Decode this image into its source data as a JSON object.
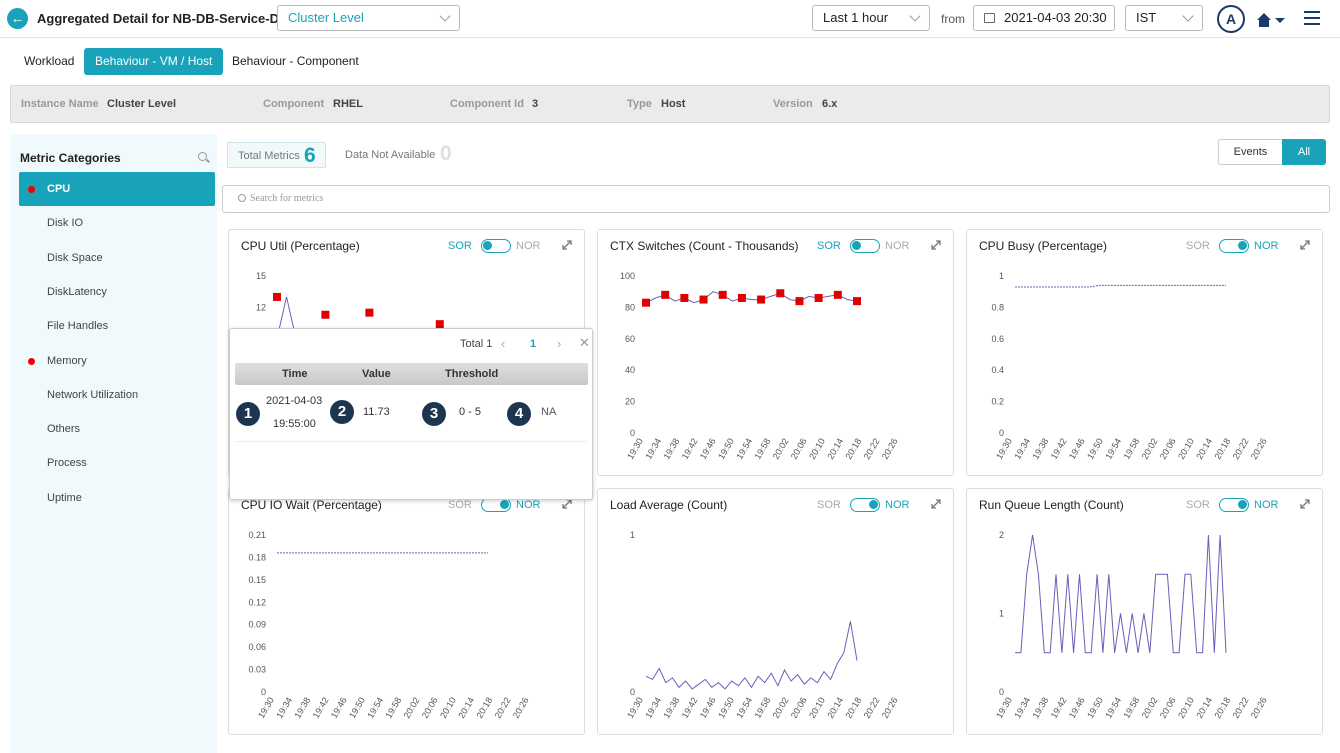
{
  "header": {
    "title": "Aggregated Detail for NB-DB-Service-DR",
    "level_select": "Cluster Level",
    "time_range": "Last 1 hour",
    "from_label": "from",
    "from_date": "2021-04-03 20:30",
    "timezone": "IST",
    "avatar_initial": "A"
  },
  "tabs": [
    {
      "label": "Workload"
    },
    {
      "label": "Behaviour - VM / Host"
    },
    {
      "label": "Behaviour - Component"
    }
  ],
  "info": {
    "instance_name_label": "Instance Name",
    "instance_name": "Cluster Level",
    "component_label": "Component",
    "component": "RHEL",
    "component_id_label": "Component Id",
    "component_id": "3",
    "type_label": "Type",
    "type": "Host",
    "version_label": "Version",
    "version": "6.x"
  },
  "sidebar": {
    "title": "Metric Categories",
    "items": [
      {
        "label": "CPU",
        "alert": true
      },
      {
        "label": "Disk IO",
        "alert": false
      },
      {
        "label": "Disk Space",
        "alert": false
      },
      {
        "label": "DiskLatency",
        "alert": false
      },
      {
        "label": "File Handles",
        "alert": false
      },
      {
        "label": "Memory",
        "alert": true
      },
      {
        "label": "Network Utilization",
        "alert": false
      },
      {
        "label": "Others",
        "alert": false
      },
      {
        "label": "Process",
        "alert": false
      },
      {
        "label": "Uptime",
        "alert": false
      }
    ]
  },
  "summary": {
    "total_metrics_label": "Total Metrics",
    "total_metrics": "6",
    "data_na_label": "Data Not Available",
    "data_na": "0"
  },
  "filter": {
    "events": "Events",
    "all": "All"
  },
  "search": {
    "placeholder": "Search for metrics"
  },
  "toggle": {
    "sor": "SOR",
    "nor": "NOR"
  },
  "x_ticks": [
    "19:30",
    "19:34",
    "19:38",
    "19:42",
    "19:46",
    "19:50",
    "19:54",
    "19:58",
    "20:02",
    "20:06",
    "20:10",
    "20:14",
    "20:18",
    "20:22",
    "20:26"
  ],
  "colors": {
    "accent": "#18a3bb",
    "alert": "#e00000",
    "line": "#6a5fb8"
  },
  "charts": [
    {
      "title": "CPU Util (Percentage)",
      "sor_active": true,
      "y_ticks": [
        "15",
        "12"
      ],
      "ylim": [
        0,
        15
      ],
      "line": [
        9,
        13,
        9,
        9,
        9,
        9,
        9,
        9,
        9,
        9,
        9,
        9,
        9,
        9,
        9,
        9,
        9,
        9,
        9,
        9,
        9
      ],
      "markers": [
        [
          0,
          13
        ],
        [
          11,
          11.3
        ],
        [
          21,
          11.5
        ],
        [
          37,
          10.4
        ]
      ]
    },
    {
      "title": "CTX Switches (Count - Thousands)",
      "sor_active": true,
      "y_ticks": [
        "100",
        "80",
        "60",
        "40",
        "20",
        "0"
      ],
      "ylim": [
        0,
        100
      ],
      "values": [
        83,
        86,
        88,
        84,
        86,
        83,
        85,
        90,
        88,
        84,
        86,
        85,
        85,
        87,
        89,
        85,
        84,
        87,
        86,
        87,
        88,
        85,
        84
      ]
    },
    {
      "title": "CPU Busy (Percentage)",
      "sor_active": false,
      "y_ticks": [
        "1",
        "0.8",
        "0.6",
        "0.4",
        "0.2",
        "0"
      ],
      "ylim": [
        0,
        1
      ],
      "values": [
        0.93,
        0.93,
        0.93,
        0.93,
        0.93,
        0.93,
        0.93,
        0.93,
        0.94,
        0.94,
        0.94,
        0.94,
        0.94,
        0.94,
        0.94,
        0.94,
        0.94,
        0.94,
        0.94,
        0.94,
        0.94
      ]
    },
    {
      "title": "CPU IO Wait (Percentage)",
      "sor_active": false,
      "y_ticks": [
        "0.21",
        "0.18",
        "0.15",
        "0.12",
        "0.09",
        "0.06",
        "0.03",
        "0"
      ],
      "ylim": [
        0,
        0.21
      ],
      "values": [
        0.186,
        0.186,
        0.186,
        0.186,
        0.186,
        0.186,
        0.186,
        0.186,
        0.186,
        0.186,
        0.186,
        0.186,
        0.186,
        0.186,
        0.186,
        0.186,
        0.186,
        0.186,
        0.186,
        0.186,
        0.186
      ]
    },
    {
      "title": "Load Average (Count)",
      "sor_active": false,
      "y_ticks": [
        "1",
        "0"
      ],
      "ylim": [
        0,
        1
      ],
      "values": [
        0.1,
        0.08,
        0.15,
        0.06,
        0.09,
        0.03,
        0.07,
        0.02,
        0.05,
        0.08,
        0.03,
        0.06,
        0.02,
        0.07,
        0.04,
        0.09,
        0.03,
        0.1,
        0.06,
        0.12,
        0.04,
        0.14,
        0.07,
        0.11,
        0.05,
        0.09,
        0.06,
        0.13,
        0.08,
        0.18,
        0.25,
        0.45,
        0.2
      ]
    },
    {
      "title": "Run Queue Length (Count)",
      "sor_active": false,
      "y_ticks": [
        "2",
        "1",
        "0"
      ],
      "ylim": [
        0,
        2
      ],
      "values": [
        0.5,
        0.5,
        1.5,
        2,
        1.5,
        0.5,
        0.5,
        1.5,
        0.5,
        1.5,
        0.5,
        1.5,
        0.5,
        0.5,
        1.5,
        0.5,
        1.5,
        0.5,
        1,
        0.5,
        1,
        0.5,
        1,
        0.5,
        1.5,
        1.5,
        1.5,
        0.5,
        0.5,
        1.5,
        1.5,
        0.5,
        0.5,
        2,
        0.5,
        2,
        0.5
      ]
    }
  ],
  "popup": {
    "total_label": "Total 1",
    "page": "1",
    "columns": {
      "time": "Time",
      "value": "Value",
      "threshold": "Threshold"
    },
    "row": {
      "date": "2021-04-03",
      "time": "19:55:00",
      "value": "11.73",
      "threshold": "0 - 5",
      "extra": "NA"
    },
    "badges": [
      "1",
      "2",
      "3",
      "4"
    ]
  }
}
